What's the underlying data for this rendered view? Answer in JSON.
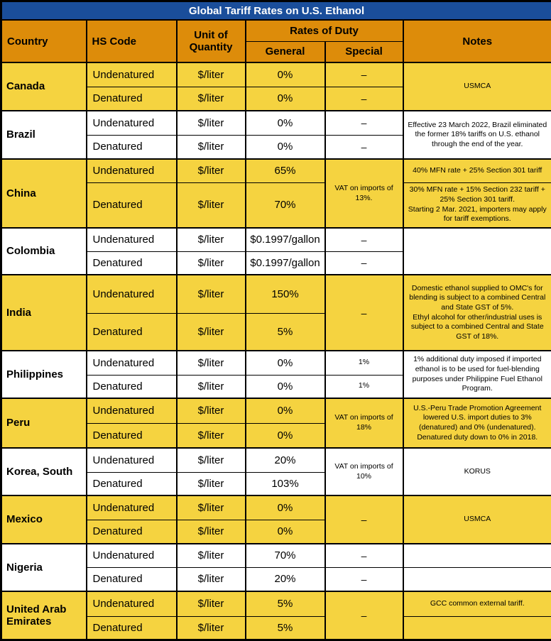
{
  "title": "Global Tariff Rates on U.S. Ethanol",
  "colors": {
    "title_bg": "#1A4E9B",
    "title_text": "#FFFFFF",
    "header_bg": "#DD8C0A",
    "row_yellow": "#F5D340",
    "row_white": "#FFFFFF",
    "border": "#000000"
  },
  "header": {
    "country": "Country",
    "hs_code": "HS Code",
    "unit": "Unit of Quantity",
    "rates": "Rates of Duty",
    "general": "General",
    "special": "Special",
    "notes": "Notes"
  },
  "countries": [
    {
      "name": "Canada",
      "shade": "yellow",
      "rows": [
        {
          "hs": "Undenatured",
          "unit": "$/liter",
          "general": "0%",
          "special": "–"
        },
        {
          "hs": "Denatured",
          "unit": "$/liter",
          "general": "0%",
          "special": "–"
        }
      ],
      "special_merged": null,
      "notes_merged": "USMCA",
      "notes_rows": null
    },
    {
      "name": "Brazil",
      "shade": "white",
      "rows": [
        {
          "hs": "Undenatured",
          "unit": "$/liter",
          "general": "0%",
          "special": "–"
        },
        {
          "hs": "Denatured",
          "unit": "$/liter",
          "general": "0%",
          "special": "–"
        }
      ],
      "special_merged": null,
      "notes_merged": "Effective 23 March 2022, Brazil eliminated the former 18% tariffs on U.S. ethanol through the end of the year.",
      "notes_rows": null
    },
    {
      "name": "China",
      "shade": "yellow",
      "rows": [
        {
          "hs": "Undenatured",
          "unit": "$/liter",
          "general": "65%",
          "special": null
        },
        {
          "hs": "Denatured",
          "unit": "$/liter",
          "general": "70%",
          "special": null
        }
      ],
      "special_merged": "VAT on imports of 13%.",
      "notes_merged": null,
      "notes_rows": [
        "40% MFN rate + 25% Section 301 tariff",
        "30% MFN rate + 15% Section 232 tariff + 25% Section 301 tariff.\nStarting 2 Mar. 2021, importers may apply for tariff exemptions."
      ]
    },
    {
      "name": "Colombia",
      "shade": "white",
      "rows": [
        {
          "hs": "Undenatured",
          "unit": "$/liter",
          "general": "$0.1997/gallon",
          "special": "–"
        },
        {
          "hs": "Denatured",
          "unit": "$/liter",
          "general": "$0.1997/gallon",
          "special": "–"
        }
      ],
      "special_merged": null,
      "notes_merged": "",
      "notes_rows": null
    },
    {
      "name": "India",
      "shade": "yellow",
      "rows": [
        {
          "hs": "Undenatured",
          "unit": "$/liter",
          "general": "150%",
          "special": null
        },
        {
          "hs": "Denatured",
          "unit": "$/liter",
          "general": "5%",
          "special": null
        }
      ],
      "special_merged": "–",
      "notes_merged": "Domestic ethanol supplied to OMC's for blending is subject to a combined Central and State GST of 5%.\nEthyl alcohol for other/industrial uses is subject to a combined Central and State GST of 18%.",
      "notes_rows": null
    },
    {
      "name": "Philippines",
      "shade": "white",
      "rows": [
        {
          "hs": "Undenatured",
          "unit": "$/liter",
          "general": "0%",
          "special": "1%"
        },
        {
          "hs": "Denatured",
          "unit": "$/liter",
          "general": "0%",
          "special": "1%"
        }
      ],
      "special_merged": null,
      "notes_merged": "1% additional duty imposed if imported ethanol is to be used for fuel-blending purposes under Philippine Fuel Ethanol Program.",
      "notes_rows": null
    },
    {
      "name": "Peru",
      "shade": "yellow",
      "rows": [
        {
          "hs": "Undenatured",
          "unit": "$/liter",
          "general": "0%",
          "special": null
        },
        {
          "hs": "Denatured",
          "unit": "$/liter",
          "general": "0%",
          "special": null
        }
      ],
      "special_merged": "VAT on imports of 18%",
      "notes_merged": "U.S.-Peru Trade Promotion Agreement lowered U.S. import duties to 3% (denatured) and 0% (undenatured). Denatured duty down to 0% in 2018.",
      "notes_rows": null
    },
    {
      "name": "Korea, South",
      "shade": "white",
      "rows": [
        {
          "hs": "Undenatured",
          "unit": "$/liter",
          "general": "20%",
          "special": null
        },
        {
          "hs": "Denatured",
          "unit": "$/liter",
          "general": "103%",
          "special": null
        }
      ],
      "special_merged": "VAT on imports of 10%",
      "notes_merged": "KORUS",
      "notes_rows": null
    },
    {
      "name": "Mexico",
      "shade": "yellow",
      "rows": [
        {
          "hs": "Undenatured",
          "unit": "$/liter",
          "general": "0%",
          "special": null
        },
        {
          "hs": "Denatured",
          "unit": "$/liter",
          "general": "0%",
          "special": null
        }
      ],
      "special_merged": "–",
      "notes_merged": "USMCA",
      "notes_rows": null
    },
    {
      "name": "Nigeria",
      "shade": "white",
      "rows": [
        {
          "hs": "Undenatured",
          "unit": "$/liter",
          "general": "70%",
          "special": "–"
        },
        {
          "hs": "Denatured",
          "unit": "$/liter",
          "general": "20%",
          "special": "–"
        }
      ],
      "special_merged": null,
      "notes_merged": null,
      "notes_rows": [
        "",
        ""
      ]
    },
    {
      "name": "United Arab Emirates",
      "shade": "yellow",
      "rows": [
        {
          "hs": "Undenatured",
          "unit": "$/liter",
          "general": "5%",
          "special": null
        },
        {
          "hs": "Denatured",
          "unit": "$/liter",
          "general": "5%",
          "special": null
        }
      ],
      "special_merged": "–",
      "notes_merged": null,
      "notes_rows": [
        "GCC common external tariff.",
        ""
      ]
    }
  ]
}
